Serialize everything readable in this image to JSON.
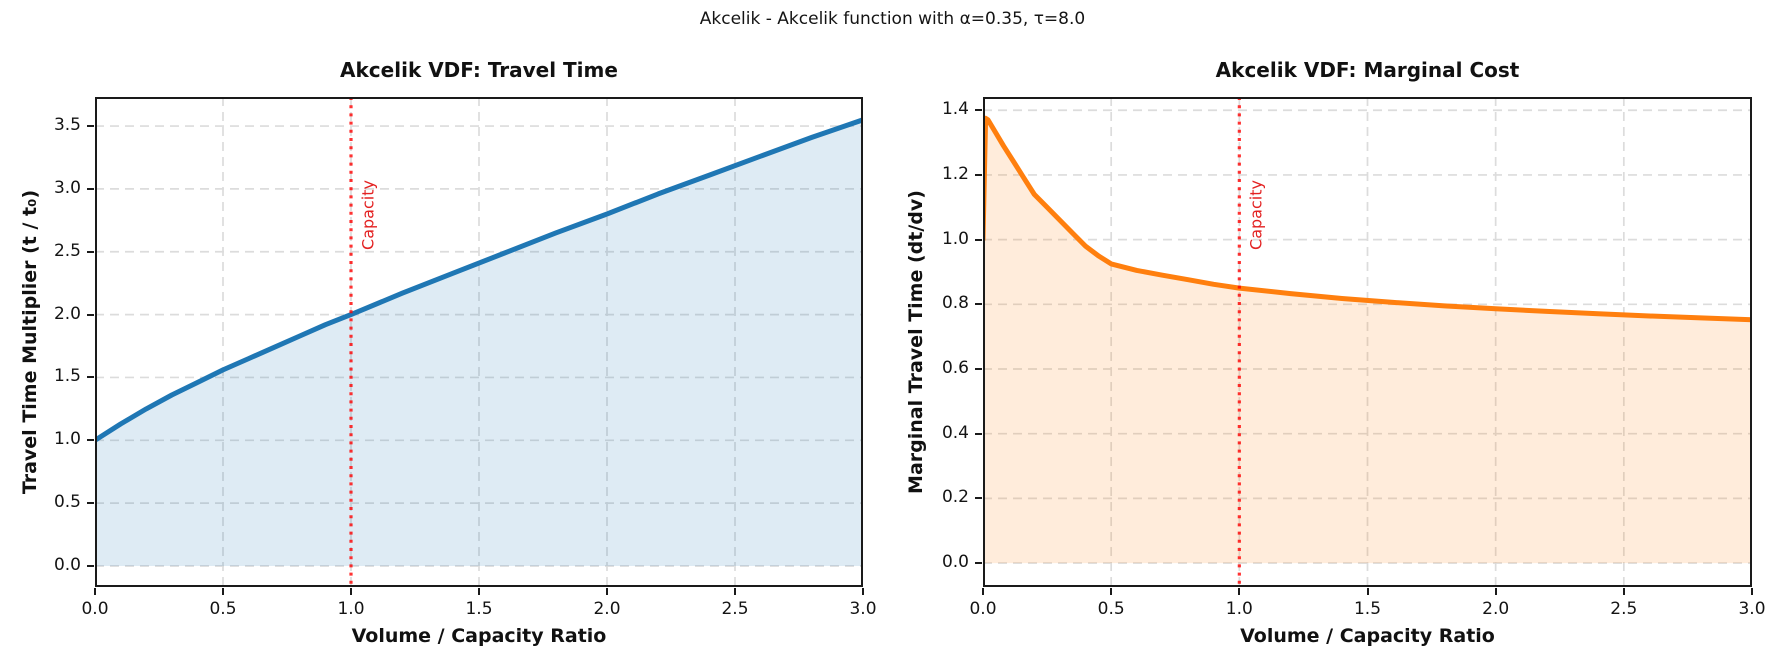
{
  "suptitle": "Akcelik - Akcelik function with α=0.35, τ=8.0",
  "chart_data": [
    {
      "id": "travel-time",
      "type": "area",
      "title": "Akcelik VDF: Travel Time",
      "xlabel": "Volume / Capacity Ratio",
      "ylabel": "Travel Time Multiplier (t / t₀)",
      "xlim": [
        0,
        3
      ],
      "ylim": [
        -0.167,
        3.731
      ],
      "xticks": [
        0,
        0.5,
        1.0,
        1.5,
        2.0,
        2.5,
        3.0
      ],
      "yticks": [
        0,
        0.5,
        1.0,
        1.5,
        2.0,
        2.5,
        3.0,
        3.5
      ],
      "grid": true,
      "line_color": "#1f77b4",
      "fill_color": "rgba(31,119,180,0.15)",
      "fill_baseline": 0,
      "x": [
        0,
        0.1,
        0.2,
        0.3,
        0.4,
        0.5,
        0.6,
        0.7,
        0.8,
        0.9,
        1.0,
        1.2,
        1.4,
        1.6,
        1.8,
        2.0,
        2.2,
        2.4,
        2.6,
        2.8,
        3.0
      ],
      "y": [
        1.0,
        1.13,
        1.25,
        1.36,
        1.46,
        1.56,
        1.65,
        1.74,
        1.83,
        1.92,
        2.0,
        2.17,
        2.33,
        2.49,
        2.65,
        2.8,
        2.96,
        3.11,
        3.26,
        3.41,
        3.55
      ],
      "annotation": {
        "label": "Capacity",
        "x": 1.0,
        "line_color": "rgba(255,0,0,0.8)",
        "label_color": "#e32222"
      }
    },
    {
      "id": "marginal-cost",
      "type": "area",
      "title": "Akcelik VDF: Marginal Cost",
      "xlabel": "Volume / Capacity Ratio",
      "ylabel": "Marginal Travel Time (dt/dv)",
      "xlim": [
        0,
        3
      ],
      "ylim": [
        -0.074,
        1.441
      ],
      "xticks": [
        0,
        0.5,
        1.0,
        1.5,
        2.0,
        2.5,
        3.0
      ],
      "yticks": [
        0,
        0.2,
        0.4,
        0.6,
        0.8,
        1.0,
        1.2,
        1.4
      ],
      "grid": true,
      "line_color": "#ff7f0e",
      "fill_color": "rgba(255,127,14,0.15)",
      "fill_baseline": 0,
      "x": [
        0,
        0.01,
        0.02,
        0.05,
        0.08,
        0.12,
        0.16,
        0.2,
        0.25,
        0.3,
        0.35,
        0.4,
        0.45,
        0.5,
        0.6,
        0.7,
        0.8,
        0.9,
        1.0,
        1.2,
        1.4,
        1.6,
        1.8,
        2.0,
        2.2,
        2.4,
        2.6,
        2.8,
        3.0
      ],
      "y": [
        1.0,
        1.375,
        1.37,
        1.33,
        1.29,
        1.24,
        1.19,
        1.14,
        1.1,
        1.06,
        1.02,
        0.98,
        0.95,
        0.925,
        0.905,
        0.89,
        0.876,
        0.862,
        0.85,
        0.833,
        0.818,
        0.806,
        0.795,
        0.786,
        0.778,
        0.771,
        0.764,
        0.758,
        0.752
      ],
      "annotation": {
        "label": "Capacity",
        "x": 1.0,
        "line_color": "rgba(255,0,0,0.8)",
        "label_color": "#e32222"
      }
    }
  ]
}
